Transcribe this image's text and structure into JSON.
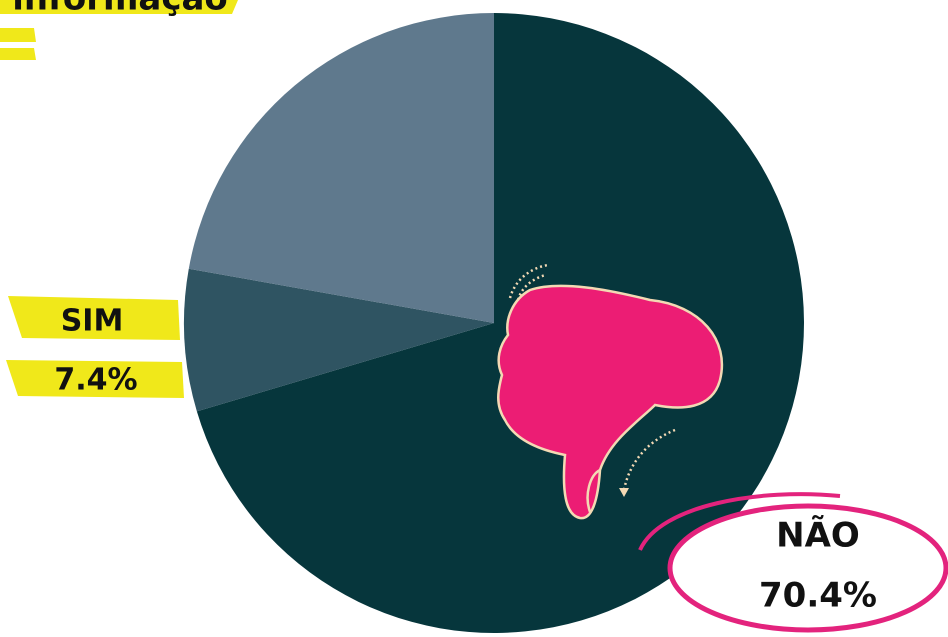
{
  "chart_data": {
    "type": "pie",
    "categories": [
      "NÃO",
      "SIM",
      "informação"
    ],
    "values": [
      70.4,
      7.4,
      22.2
    ],
    "value_labels": [
      "70.4%",
      "7.4%",
      null
    ],
    "colors": [
      "#06363c",
      "#2f5462",
      "#5f798d"
    ]
  }
}
